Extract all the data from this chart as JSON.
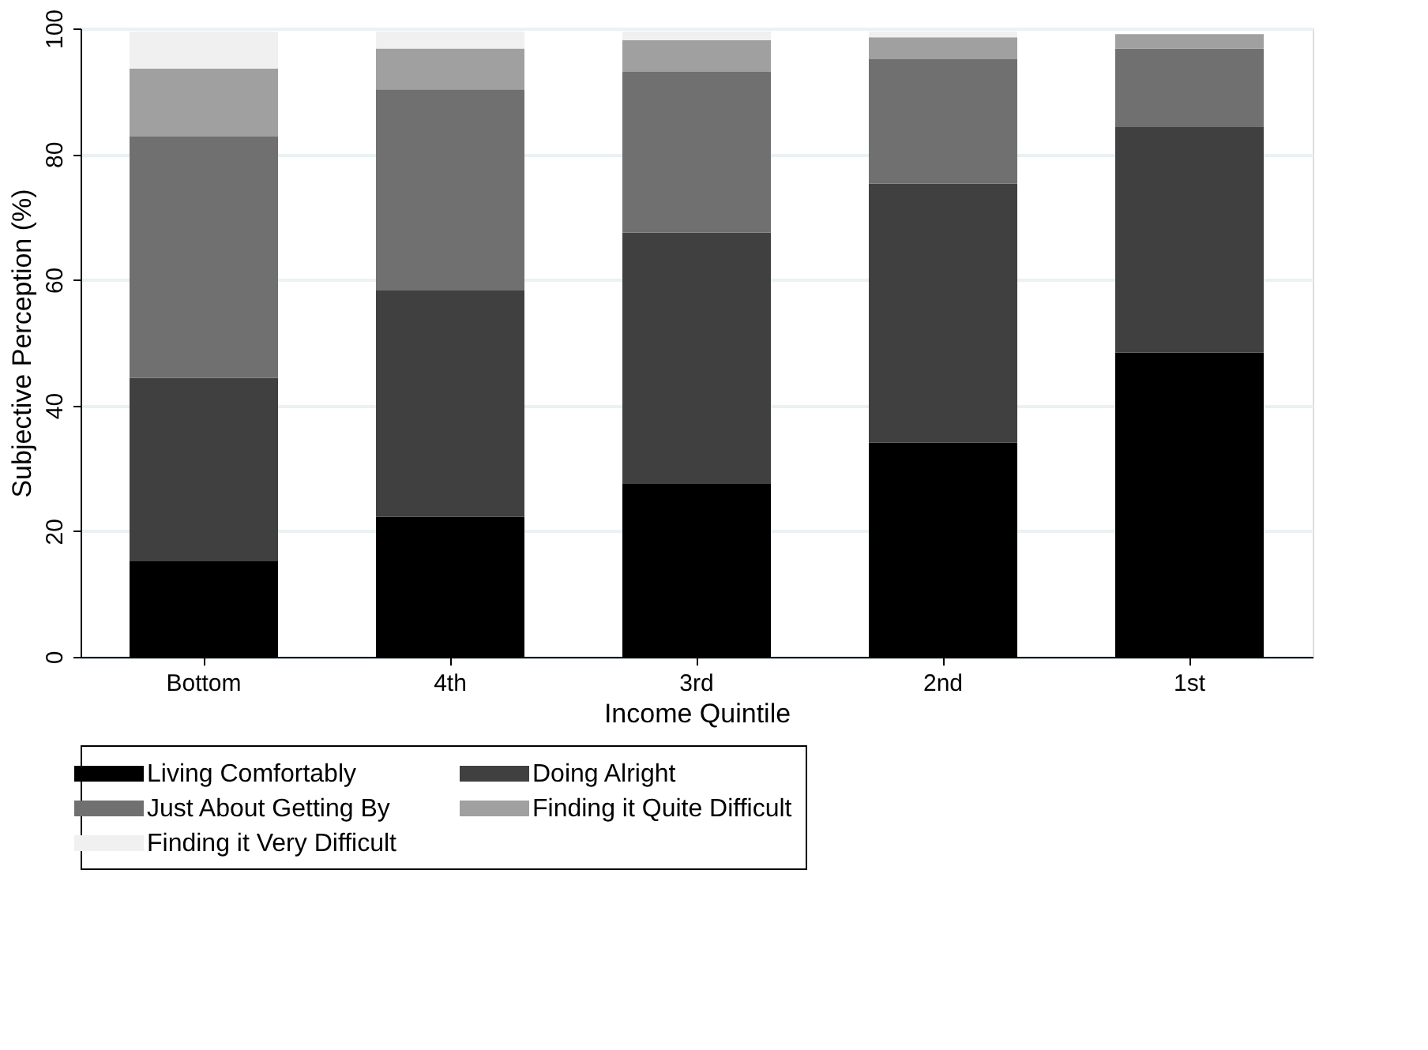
{
  "chart_data": {
    "type": "bar",
    "stacked": true,
    "xlabel": "Income Quintile",
    "ylabel": "Subjective Perception (%)",
    "categories": [
      "Bottom",
      "4th",
      "3rd",
      "2nd",
      "1st"
    ],
    "series": [
      {
        "name": "Living Comfortably",
        "color": "#000000",
        "values": [
          15.3,
          22.3,
          27.6,
          34.1,
          48.4
        ]
      },
      {
        "name": "Doing Alright",
        "color": "#404040",
        "values": [
          29.1,
          36.1,
          39.9,
          41.2,
          35.9
        ]
      },
      {
        "name": "Just About Getting By",
        "color": "#707070",
        "values": [
          38.4,
          31.9,
          25.6,
          19.8,
          12.5
        ]
      },
      {
        "name": "Finding it Quite Difficult",
        "color": "#a0a0a0",
        "values": [
          10.8,
          6.5,
          5.0,
          3.5,
          2.3
        ]
      },
      {
        "name": "Finding it Very Difficult",
        "color": "#f0f0f0",
        "values": [
          5.9,
          2.7,
          1.4,
          0.9,
          0
        ]
      }
    ],
    "ylim": [
      0,
      100
    ],
    "yticks": [
      0,
      20,
      40,
      60,
      80,
      100
    ],
    "grid": "y",
    "legend": "bottom"
  }
}
